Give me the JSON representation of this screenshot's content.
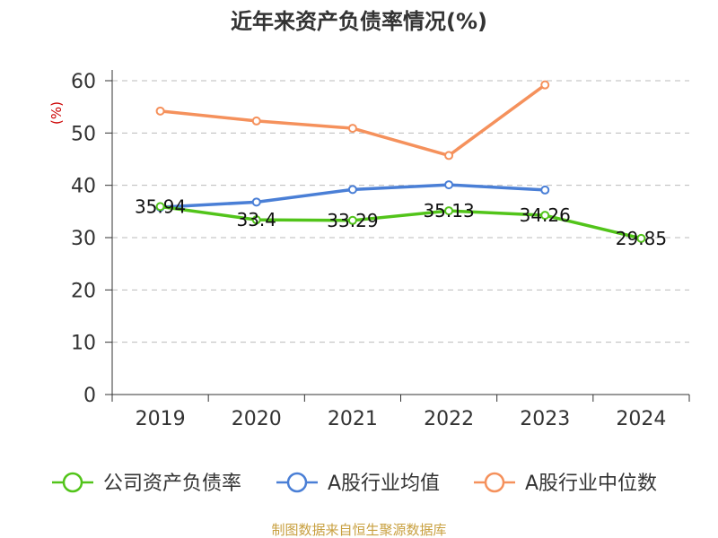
{
  "title": "近年来资产负债率情况(%)",
  "unit_label": "(%)",
  "source": "制图数据来自恒生聚源数据库",
  "chart_data": {
    "type": "line",
    "title": "近年来资产负债率情况(%)",
    "ylabel": "(%)",
    "categories": [
      "2019",
      "2020",
      "2021",
      "2022",
      "2023",
      "2024"
    ],
    "ylim": [
      0,
      60
    ],
    "yticks": [
      0,
      10,
      20,
      30,
      40,
      50,
      60
    ],
    "grid": true,
    "legend_position": "bottom",
    "series": [
      {
        "name": "公司资产负债率",
        "color": "#52c41a",
        "values": [
          35.94,
          33.4,
          33.29,
          35.13,
          34.26,
          29.85
        ],
        "labels": [
          "35.94",
          "33.4",
          "33.29",
          "35.13",
          "34.26",
          "29.85"
        ]
      },
      {
        "name": "A股行业均值",
        "color": "#4a7fd6",
        "values": [
          35.8,
          36.8,
          39.2,
          40.1,
          39.1,
          null
        ]
      },
      {
        "name": "A股行业中位数",
        "color": "#f5915c",
        "values": [
          54.2,
          52.3,
          50.9,
          45.7,
          59.2,
          null
        ]
      }
    ]
  }
}
